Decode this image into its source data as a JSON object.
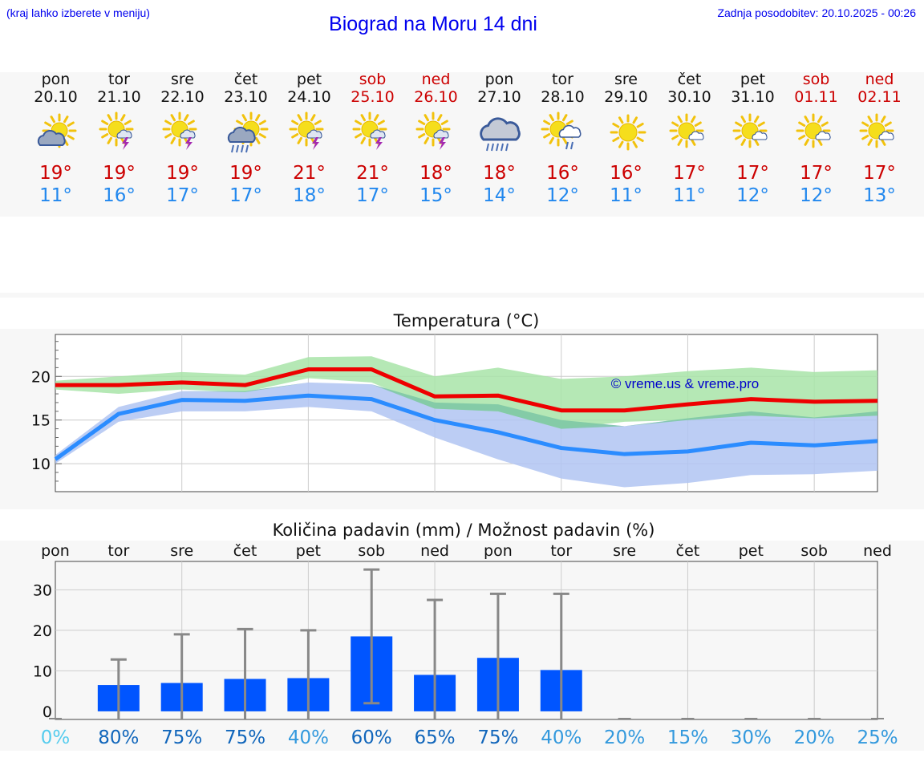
{
  "header": {
    "left_note": "(kraj lahko izberete v meniju)",
    "title": "Biograd na Moru 14 dni",
    "updated": "Zadnja posodobitev: 20.10.2025 - 00:26"
  },
  "days": [
    {
      "name": "pon",
      "date": "20.10",
      "weekend": false,
      "icon": "partly-cloudy-icon",
      "tmax": "19°",
      "tmin": "11°"
    },
    {
      "name": "tor",
      "date": "21.10",
      "weekend": false,
      "icon": "sun-thunder-icon",
      "tmax": "19°",
      "tmin": "16°"
    },
    {
      "name": "sre",
      "date": "22.10",
      "weekend": false,
      "icon": "sun-thunder-icon",
      "tmax": "19°",
      "tmin": "17°"
    },
    {
      "name": "čet",
      "date": "23.10",
      "weekend": false,
      "icon": "sun-rain-icon",
      "tmax": "19°",
      "tmin": "17°"
    },
    {
      "name": "pet",
      "date": "24.10",
      "weekend": false,
      "icon": "sun-thunder-icon",
      "tmax": "21°",
      "tmin": "18°"
    },
    {
      "name": "sob",
      "date": "25.10",
      "weekend": true,
      "icon": "sun-thunder-icon",
      "tmax": "21°",
      "tmin": "17°"
    },
    {
      "name": "ned",
      "date": "26.10",
      "weekend": true,
      "icon": "sun-thunder-icon",
      "tmax": "18°",
      "tmin": "15°"
    },
    {
      "name": "pon",
      "date": "27.10",
      "weekend": false,
      "icon": "cloud-rain-icon",
      "tmax": "18°",
      "tmin": "14°"
    },
    {
      "name": "tor",
      "date": "28.10",
      "weekend": false,
      "icon": "sun-cloud-rain-icon",
      "tmax": "16°",
      "tmin": "12°"
    },
    {
      "name": "sre",
      "date": "29.10",
      "weekend": false,
      "icon": "sun-icon",
      "tmax": "16°",
      "tmin": "11°"
    },
    {
      "name": "čet",
      "date": "30.10",
      "weekend": false,
      "icon": "sun-small-cloud-icon",
      "tmax": "17°",
      "tmin": "11°"
    },
    {
      "name": "pet",
      "date": "31.10",
      "weekend": false,
      "icon": "sun-small-cloud-icon",
      "tmax": "17°",
      "tmin": "12°"
    },
    {
      "name": "sob",
      "date": "01.11",
      "weekend": true,
      "icon": "sun-small-cloud-icon",
      "tmax": "17°",
      "tmin": "12°"
    },
    {
      "name": "ned",
      "date": "02.11",
      "weekend": true,
      "icon": "sun-small-cloud-icon",
      "tmax": "17°",
      "tmin": "13°"
    }
  ],
  "colors": {
    "max_line": "#ee0000",
    "min_line": "#2b8cff",
    "max_band": "#a8e4a8",
    "min_band": "#b0c4f2",
    "bar": "#0055ff",
    "errbar": "#888888",
    "weekend": "#cc0000"
  },
  "chart_data": [
    {
      "type": "line",
      "title": "Temperatura (°C)",
      "watermark": "© vreme.us & vreme.pro",
      "x": [
        "pon",
        "tor",
        "sre",
        "čet",
        "pet",
        "sob",
        "ned",
        "pon",
        "tor",
        "sre",
        "čet",
        "pet",
        "sob",
        "ned"
      ],
      "ylim": [
        6.8,
        24.8
      ],
      "yticks": [
        10,
        15,
        20
      ],
      "series": [
        {
          "role": "max",
          "values": [
            19,
            19,
            19.3,
            19,
            20.8,
            20.8,
            17.7,
            17.8,
            16.1,
            16.1,
            16.8,
            17.4,
            17.1,
            17.2
          ]
        },
        {
          "role": "min",
          "values": [
            10.5,
            15.7,
            17.3,
            17.2,
            17.8,
            17.4,
            15,
            13.6,
            11.8,
            11.1,
            11.4,
            12.4,
            12.1,
            12.6
          ]
        }
      ],
      "bands": [
        {
          "role": "max_range",
          "upper": [
            19.5,
            20,
            20.5,
            20.2,
            22.2,
            22.3,
            20,
            21,
            19.7,
            20,
            20.6,
            21,
            20.5,
            20.7
          ],
          "lower": [
            18.5,
            18,
            18.5,
            18.2,
            19.8,
            19.3,
            16.3,
            16,
            14,
            14.8,
            15,
            15.5,
            15.2,
            15.5
          ]
        },
        {
          "role": "min_range",
          "upper": [
            11,
            16.5,
            18.3,
            18.3,
            19.3,
            19.1,
            17,
            16.8,
            15,
            14.3,
            15.2,
            16,
            15.3,
            16
          ]
        },
        {
          "role": "min_range_lower",
          "lower": [
            10,
            14.8,
            16,
            16,
            16.5,
            16,
            13,
            10.5,
            8.3,
            7.3,
            7.8,
            8.7,
            8.8,
            9.2
          ]
        }
      ],
      "grid": true
    },
    {
      "type": "bar",
      "title": "Količina padavin (mm) / Možnost padavin (%)",
      "categories": [
        "pon",
        "tor",
        "sre",
        "čet",
        "pet",
        "sob",
        "ned",
        "pon",
        "tor",
        "sre",
        "čet",
        "pet",
        "sob",
        "ned"
      ],
      "values": [
        0,
        6.5,
        7,
        8,
        8.2,
        18.5,
        9,
        13.2,
        10.2,
        0,
        0,
        0,
        0,
        0
      ],
      "error_upper": [
        0,
        12.8,
        19,
        20.3,
        20,
        35,
        27.5,
        29,
        29,
        0,
        0,
        0,
        0,
        0
      ],
      "error_lower": [
        0,
        0,
        0,
        0,
        0,
        2,
        0,
        0,
        0,
        0,
        0,
        0,
        0,
        0
      ],
      "probability": [
        "0%",
        "80%",
        "75%",
        "75%",
        "40%",
        "60%",
        "65%",
        "75%",
        "40%",
        "20%",
        "15%",
        "30%",
        "20%",
        "25%"
      ],
      "probability_colors": [
        "#55ccee",
        "#1166bb",
        "#1166bb",
        "#1166bb",
        "#3399dd",
        "#1166bb",
        "#1166bb",
        "#1166bb",
        "#3399dd",
        "#3399dd",
        "#3399dd",
        "#3399dd",
        "#3399dd",
        "#3399dd"
      ],
      "ylim": [
        -2,
        37
      ],
      "yticks": [
        0,
        10,
        20,
        30
      ],
      "grid": true
    }
  ]
}
